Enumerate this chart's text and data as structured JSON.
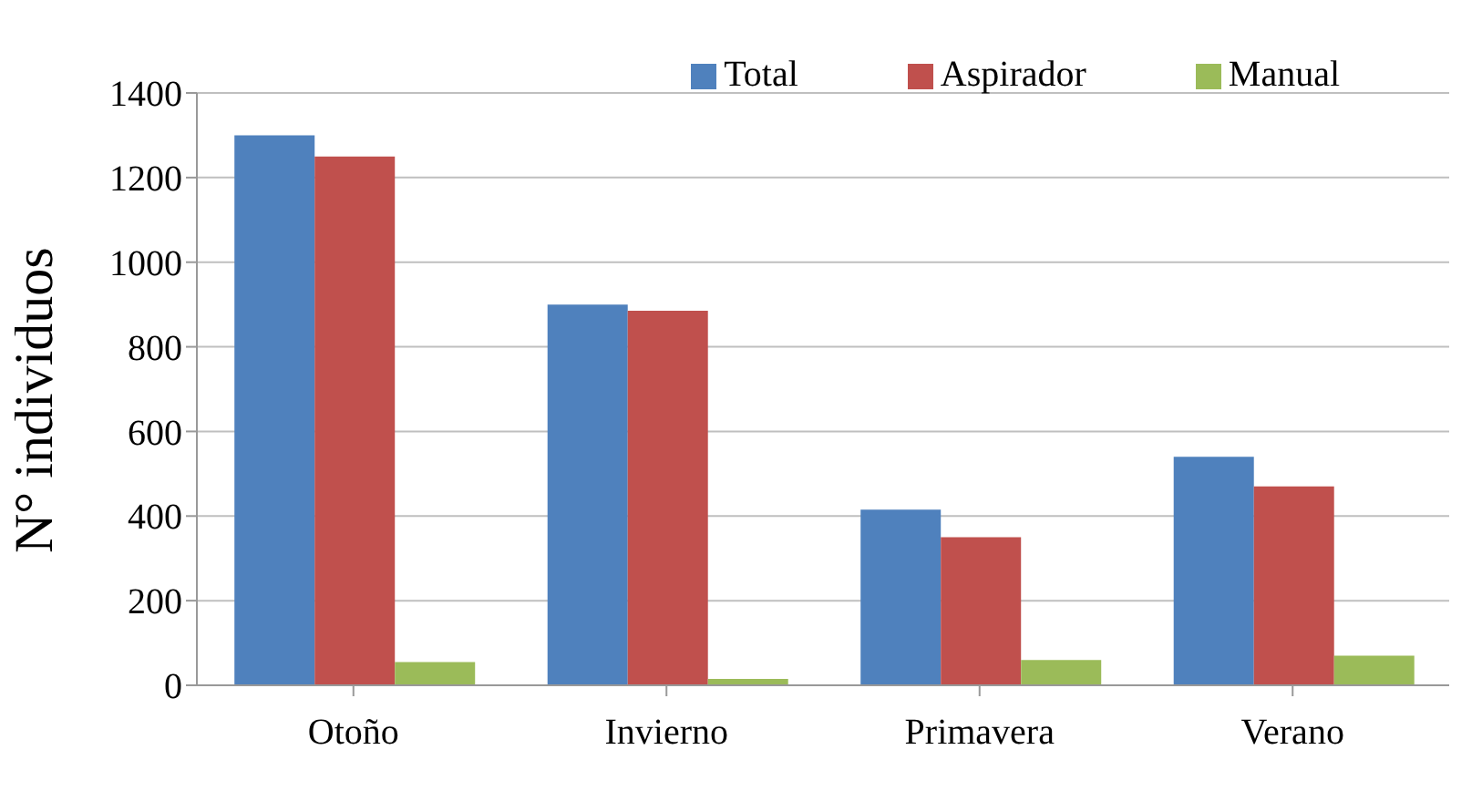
{
  "chart_data": {
    "type": "bar",
    "ylabel": "N° individuos",
    "categories": [
      "Otoño",
      "Invierno",
      "Primavera",
      "Verano"
    ],
    "series": [
      {
        "name": "Total",
        "color": "#4f81bd",
        "values": [
          1300,
          900,
          415,
          540
        ]
      },
      {
        "name": "Aspirador",
        "color": "#c0504d",
        "values": [
          1250,
          885,
          350,
          470
        ]
      },
      {
        "name": "Manual",
        "color": "#9bbb59",
        "values": [
          55,
          15,
          60,
          70
        ]
      }
    ],
    "ylim": [
      0,
      1400
    ],
    "yticks": [
      0,
      200,
      400,
      600,
      800,
      1000,
      1200,
      1400
    ],
    "grid": "y",
    "legend": "top right"
  }
}
